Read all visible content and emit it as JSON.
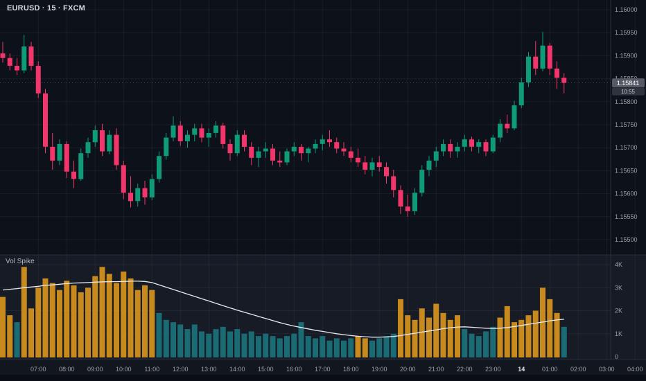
{
  "header": {
    "symbol_title": "EURUSD · 15 · FXCM"
  },
  "indicator": {
    "label": "Vol Spike"
  },
  "colors": {
    "pane_main_bg": "#0d1119",
    "pane_vol_bg": "#161b26",
    "axis_bg": "#12161f",
    "bottom_strip_bg": "#0a0d13",
    "grid": "rgba(255,255,255,0.05)",
    "divider": "#2a2e39",
    "up": "#0f9b78",
    "down": "#f2366b",
    "vol_spike": "#c8891d",
    "vol_normal": "#1a6b74",
    "ma_line": "#e8eaed",
    "axis_text": "#9b9fa8",
    "axis_text_emph": "#e2e4e8",
    "price_badge_bg": "#555a64",
    "price_badge_text": "#ffffff",
    "countdown_bg": "#2f333d",
    "countdown_text": "#c9ccd2",
    "last_price_line": "#9b9fa8"
  },
  "price_axis": {
    "labels": [
      "1.16000",
      "1.15950",
      "1.15900",
      "1.15850",
      "1.15800",
      "1.15750",
      "1.15700",
      "1.15650",
      "1.15600",
      "1.15550",
      "1.15500"
    ],
    "last_price_label": "1.15841",
    "countdown": "10:55"
  },
  "volume_axis": {
    "labels": [
      "4K",
      "3K",
      "2K",
      "1K",
      "0"
    ]
  },
  "time_axis": {
    "labels": [
      "07:00",
      "08:00",
      "09:00",
      "10:00",
      "11:00",
      "12:00",
      "13:00",
      "14:00",
      "15:00",
      "16:00",
      "17:00",
      "18:00",
      "19:00",
      "20:00",
      "21:00",
      "22:00",
      "23:00",
      "14",
      "01:00",
      "02:00",
      "03:00",
      "04:00"
    ],
    "emphasis_index": 17
  },
  "chart_data": {
    "type": "candlestick",
    "title": "EURUSD · 15 · FXCM",
    "symbol": "EURUSD",
    "interval_minutes": 15,
    "provider": "FXCM",
    "indicator": "Vol Spike",
    "price_range": [
      1.155,
      1.16
    ],
    "last_price": 1.15841,
    "bar_countdown": "10:55",
    "volume_range_k": [
      0,
      4
    ],
    "candle_columns": [
      "time",
      "open",
      "high",
      "low",
      "close",
      "volume_k",
      "volume_spike"
    ],
    "candles": [
      [
        "05:45",
        1.15905,
        1.1593,
        1.15885,
        1.15895,
        2.6,
        1
      ],
      [
        "06:00",
        1.15895,
        1.15905,
        1.15868,
        1.15878,
        1.8,
        1
      ],
      [
        "06:15",
        1.15878,
        1.15895,
        1.15858,
        1.15868,
        1.5,
        0
      ],
      [
        "06:30",
        1.15868,
        1.15945,
        1.15862,
        1.1592,
        3.9,
        1
      ],
      [
        "06:45",
        1.1592,
        1.1593,
        1.15868,
        1.15878,
        2.1,
        1
      ],
      [
        "07:00",
        1.15878,
        1.15888,
        1.15808,
        1.15818,
        3.0,
        1
      ],
      [
        "07:15",
        1.15818,
        1.15828,
        1.15688,
        1.15702,
        3.4,
        1
      ],
      [
        "07:30",
        1.15702,
        1.15732,
        1.15652,
        1.15672,
        3.2,
        1
      ],
      [
        "07:45",
        1.15672,
        1.15718,
        1.15662,
        1.15708,
        2.9,
        1
      ],
      [
        "08:00",
        1.15708,
        1.15714,
        1.15634,
        1.15648,
        3.3,
        1
      ],
      [
        "08:15",
        1.15648,
        1.15672,
        1.15612,
        1.15632,
        3.1,
        1
      ],
      [
        "08:30",
        1.15632,
        1.15698,
        1.15628,
        1.15688,
        2.8,
        1
      ],
      [
        "08:45",
        1.15688,
        1.15722,
        1.15678,
        1.15712,
        3.0,
        1
      ],
      [
        "09:00",
        1.15712,
        1.15748,
        1.15702,
        1.15738,
        3.5,
        1
      ],
      [
        "09:15",
        1.15738,
        1.15752,
        1.15682,
        1.15692,
        3.9,
        1
      ],
      [
        "09:30",
        1.15692,
        1.15738,
        1.15686,
        1.15728,
        3.6,
        1
      ],
      [
        "09:45",
        1.15728,
        1.15742,
        1.15652,
        1.15662,
        3.2,
        1
      ],
      [
        "10:00",
        1.15662,
        1.15672,
        1.15588,
        1.15602,
        3.7,
        1
      ],
      [
        "10:15",
        1.15602,
        1.15638,
        1.1557,
        1.15584,
        3.4,
        1
      ],
      [
        "10:30",
        1.15584,
        1.15622,
        1.15572,
        1.15612,
        2.9,
        1
      ],
      [
        "10:45",
        1.15612,
        1.15628,
        1.15576,
        1.15592,
        3.1,
        1
      ],
      [
        "11:00",
        1.15592,
        1.15642,
        1.15586,
        1.15632,
        2.9,
        1
      ],
      [
        "11:15",
        1.15632,
        1.15692,
        1.15624,
        1.15682,
        1.9,
        0
      ],
      [
        "11:30",
        1.15682,
        1.15732,
        1.15674,
        1.15722,
        1.6,
        0
      ],
      [
        "11:45",
        1.15722,
        1.15768,
        1.15714,
        1.15748,
        1.5,
        0
      ],
      [
        "12:00",
        1.15748,
        1.15758,
        1.15704,
        1.15714,
        1.4,
        0
      ],
      [
        "12:15",
        1.15714,
        1.15738,
        1.157,
        1.15728,
        1.2,
        0
      ],
      [
        "12:30",
        1.15728,
        1.15752,
        1.15714,
        1.15742,
        1.4,
        0
      ],
      [
        "12:45",
        1.15742,
        1.15752,
        1.15712,
        1.15722,
        1.1,
        0
      ],
      [
        "13:00",
        1.15722,
        1.15742,
        1.15702,
        1.15732,
        1.0,
        0
      ],
      [
        "13:15",
        1.15732,
        1.15758,
        1.15722,
        1.15748,
        1.2,
        0
      ],
      [
        "13:30",
        1.15748,
        1.15754,
        1.15698,
        1.15708,
        1.3,
        0
      ],
      [
        "13:45",
        1.15708,
        1.15718,
        1.15672,
        1.15688,
        1.1,
        0
      ],
      [
        "14:00",
        1.15688,
        1.15738,
        1.15682,
        1.15728,
        1.2,
        0
      ],
      [
        "14:15",
        1.15728,
        1.15738,
        1.15692,
        1.15702,
        1.0,
        0
      ],
      [
        "14:30",
        1.15702,
        1.15712,
        1.15662,
        1.15678,
        1.1,
        0
      ],
      [
        "14:45",
        1.15678,
        1.15702,
        1.15658,
        1.15692,
        0.9,
        0
      ],
      [
        "15:00",
        1.15692,
        1.15712,
        1.15678,
        1.15698,
        1.0,
        0
      ],
      [
        "15:15",
        1.15698,
        1.15708,
        1.15662,
        1.15672,
        0.9,
        0
      ],
      [
        "15:30",
        1.15672,
        1.15692,
        1.15658,
        1.15668,
        0.8,
        0
      ],
      [
        "15:45",
        1.15668,
        1.15698,
        1.15662,
        1.15692,
        0.9,
        0
      ],
      [
        "16:00",
        1.15692,
        1.15712,
        1.15682,
        1.15702,
        1.0,
        0
      ],
      [
        "16:15",
        1.15702,
        1.15708,
        1.15672,
        1.15688,
        1.5,
        0
      ],
      [
        "16:30",
        1.15688,
        1.15702,
        1.15668,
        1.15698,
        0.9,
        0
      ],
      [
        "16:45",
        1.15698,
        1.15718,
        1.15688,
        1.15708,
        0.8,
        0
      ],
      [
        "17:00",
        1.15708,
        1.15728,
        1.15694,
        1.15718,
        0.9,
        0
      ],
      [
        "17:15",
        1.15718,
        1.15738,
        1.15702,
        1.15712,
        0.7,
        0
      ],
      [
        "17:30",
        1.15712,
        1.15722,
        1.15688,
        1.15698,
        0.8,
        0
      ],
      [
        "17:45",
        1.15698,
        1.15712,
        1.15682,
        1.15692,
        0.7,
        0
      ],
      [
        "18:00",
        1.15692,
        1.15702,
        1.15668,
        1.15678,
        0.8,
        0
      ],
      [
        "18:15",
        1.15678,
        1.15698,
        1.15658,
        1.15668,
        0.9,
        1
      ],
      [
        "18:30",
        1.15668,
        1.15682,
        1.15642,
        1.15652,
        0.8,
        1
      ],
      [
        "18:45",
        1.15652,
        1.15678,
        1.15638,
        1.15668,
        0.7,
        0
      ],
      [
        "19:00",
        1.15668,
        1.15682,
        1.15648,
        1.15658,
        0.8,
        0
      ],
      [
        "19:15",
        1.15658,
        1.15668,
        1.15622,
        1.15638,
        0.9,
        0
      ],
      [
        "19:30",
        1.15638,
        1.15652,
        1.15592,
        1.15608,
        1.0,
        0
      ],
      [
        "19:45",
        1.15608,
        1.15618,
        1.15556,
        1.15572,
        2.5,
        1
      ],
      [
        "20:00",
        1.15572,
        1.15598,
        1.1555,
        1.15562,
        1.8,
        1
      ],
      [
        "20:15",
        1.15562,
        1.15612,
        1.15554,
        1.15602,
        1.6,
        1
      ],
      [
        "20:30",
        1.15602,
        1.15662,
        1.15594,
        1.15652,
        2.1,
        1
      ],
      [
        "20:45",
        1.15652,
        1.15682,
        1.15638,
        1.15672,
        1.7,
        1
      ],
      [
        "21:00",
        1.15672,
        1.15702,
        1.15658,
        1.15692,
        2.3,
        1
      ],
      [
        "21:15",
        1.15692,
        1.15718,
        1.15682,
        1.15708,
        1.9,
        1
      ],
      [
        "21:30",
        1.15708,
        1.15718,
        1.15678,
        1.15692,
        1.6,
        1
      ],
      [
        "21:45",
        1.15692,
        1.15712,
        1.15678,
        1.15702,
        1.8,
        1
      ],
      [
        "22:00",
        1.15702,
        1.15728,
        1.15692,
        1.15718,
        1.2,
        0
      ],
      [
        "22:15",
        1.15718,
        1.15724,
        1.15692,
        1.15702,
        1.0,
        0
      ],
      [
        "22:30",
        1.15702,
        1.15718,
        1.15688,
        1.15712,
        0.9,
        0
      ],
      [
        "22:45",
        1.15712,
        1.15718,
        1.15682,
        1.15692,
        1.1,
        0
      ],
      [
        "23:00",
        1.15692,
        1.15728,
        1.15688,
        1.15722,
        1.3,
        0
      ],
      [
        "23:15",
        1.15722,
        1.15762,
        1.15712,
        1.15752,
        1.7,
        1
      ],
      [
        "23:30",
        1.15752,
        1.15772,
        1.15732,
        1.15742,
        2.2,
        1
      ],
      [
        "23:45",
        1.15742,
        1.15802,
        1.15738,
        1.15792,
        1.5,
        1
      ],
      [
        "00:00",
        1.15792,
        1.15852,
        1.15786,
        1.15842,
        1.6,
        1
      ],
      [
        "00:15",
        1.15842,
        1.15908,
        1.15832,
        1.15898,
        1.8,
        1
      ],
      [
        "00:30",
        1.15898,
        1.15932,
        1.15858,
        1.15872,
        2.0,
        1
      ],
      [
        "00:45",
        1.15872,
        1.15952,
        1.15866,
        1.15922,
        3.0,
        1
      ],
      [
        "01:00",
        1.15922,
        1.15928,
        1.15858,
        1.15872,
        2.5,
        1
      ],
      [
        "01:15",
        1.15872,
        1.15888,
        1.15828,
        1.15852,
        1.9,
        1
      ],
      [
        "01:30",
        1.15852,
        1.15862,
        1.15818,
        1.15841,
        1.3,
        0
      ]
    ],
    "volume_ma_k": [
      2.9,
      2.93,
      2.96,
      3.0,
      3.03,
      3.06,
      3.1,
      3.12,
      3.15,
      3.18,
      3.2,
      3.21,
      3.22,
      3.24,
      3.25,
      3.26,
      3.26,
      3.27,
      3.28,
      3.28,
      3.27,
      3.22,
      3.12,
      3.02,
      2.92,
      2.82,
      2.72,
      2.62,
      2.52,
      2.42,
      2.32,
      2.22,
      2.12,
      2.02,
      1.93,
      1.84,
      1.75,
      1.66,
      1.57,
      1.48,
      1.4,
      1.33,
      1.27,
      1.21,
      1.15,
      1.1,
      1.05,
      1.0,
      0.96,
      0.92,
      0.89,
      0.87,
      0.85,
      0.85,
      0.86,
      0.88,
      0.92,
      0.97,
      1.02,
      1.07,
      1.12,
      1.17,
      1.22,
      1.26,
      1.29,
      1.3,
      1.28,
      1.26,
      1.24,
      1.23,
      1.24,
      1.27,
      1.31,
      1.36,
      1.41,
      1.46,
      1.51,
      1.56,
      1.6,
      1.63
    ]
  }
}
